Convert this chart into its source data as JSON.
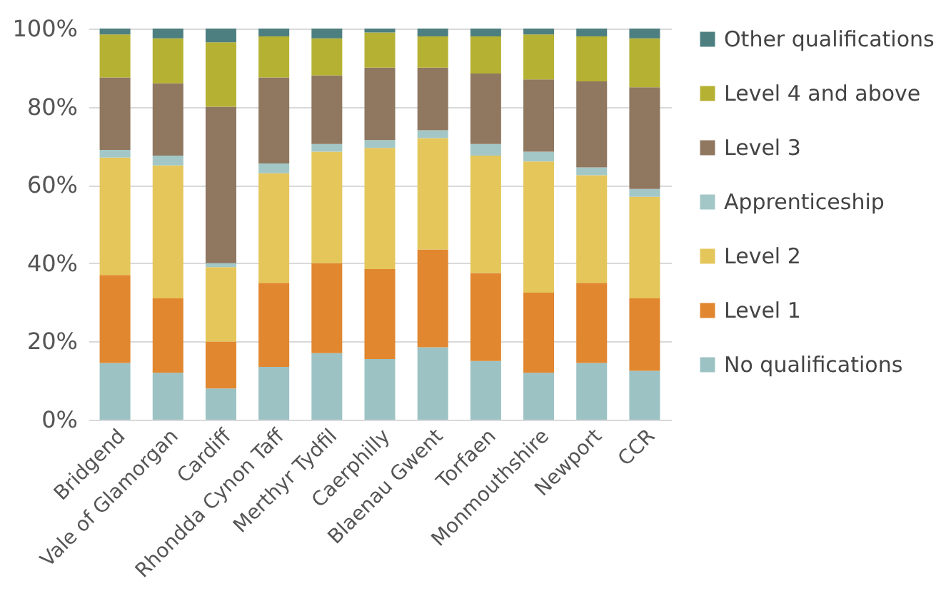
{
  "chart_data": {
    "type": "bar",
    "stacked": true,
    "categories": [
      "Bridgend",
      "Vale of Glamorgan",
      "Cardiff",
      "Rhondda Cynon Taff",
      "Merthyr Tydfil",
      "Caerphilly",
      "Blaenau Gwent",
      "Torfaen",
      "Monmouthshire",
      "Newport",
      "CCR"
    ],
    "series": [
      {
        "name": "No qualifications",
        "color": "#9cc2c4",
        "values": [
          14.5,
          12,
          8,
          13.5,
          17,
          15.5,
          18.5,
          15,
          12,
          14.5,
          12.5
        ]
      },
      {
        "name": "Level 1",
        "color": "#e0872f",
        "values": [
          22.5,
          19,
          12,
          21.5,
          23,
          23,
          25,
          22.5,
          20.5,
          20.5,
          18.5
        ]
      },
      {
        "name": "Level 2",
        "color": "#e5c65a",
        "values": [
          30,
          34,
          19,
          28,
          28.5,
          31,
          28.5,
          30,
          33.5,
          27.5,
          26
        ]
      },
      {
        "name": "Apprenticeship",
        "color": "#a3c7c7",
        "values": [
          2,
          2.5,
          1,
          2.5,
          2,
          2,
          2,
          3,
          2.5,
          2,
          2
        ]
      },
      {
        "name": "Level 3",
        "color": "#8f7760",
        "values": [
          18.5,
          18.5,
          40,
          22,
          17.5,
          18.5,
          16,
          18,
          18.5,
          22,
          26
        ]
      },
      {
        "name": "Level 4 and above",
        "color": "#b5b233",
        "values": [
          11,
          11.5,
          16.5,
          10.5,
          9.5,
          9,
          8,
          9.5,
          11.5,
          11.5,
          12.5
        ]
      },
      {
        "name": "Other qualifications",
        "color": "#4e7f80",
        "values": [
          1.5,
          2.5,
          3.5,
          2,
          2.5,
          1,
          2,
          2,
          1.5,
          2,
          2.5
        ]
      }
    ],
    "ylim": [
      0,
      100
    ],
    "yticks": [
      {
        "value": 0,
        "label": "0%"
      },
      {
        "value": 20,
        "label": "20%"
      },
      {
        "value": 40,
        "label": "40%"
      },
      {
        "value": 60,
        "label": "60%"
      },
      {
        "value": 80,
        "label": "80%"
      },
      {
        "value": 100,
        "label": "100%"
      }
    ],
    "grid": "y",
    "legend": "right"
  }
}
